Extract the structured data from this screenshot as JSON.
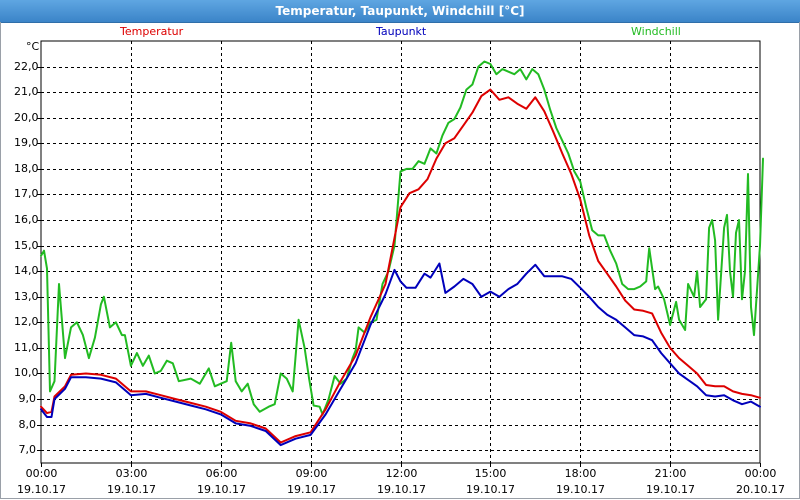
{
  "window": {
    "title": "Temperatur, Taupunkt, Windchill [°C]"
  },
  "chart_data": {
    "type": "line",
    "title": "Temperatur, Taupunkt, Windchill [°C]",
    "ylabel": "°C",
    "xlabel": "",
    "ylim": [
      6.5,
      23.0
    ],
    "xlim": [
      0,
      24
    ],
    "grid": true,
    "legend_position": "top",
    "yticks": [
      7,
      8,
      9,
      10,
      11,
      12,
      13,
      14,
      15,
      16,
      17,
      18,
      19,
      20,
      21,
      22
    ],
    "ytick_labels": [
      "7,0",
      "8,0",
      "9,0",
      "10,0",
      "11,0",
      "12,0",
      "13,0",
      "14,0",
      "15,0",
      "16,0",
      "17,0",
      "18,0",
      "19,0",
      "20,0",
      "21,0",
      "22,0"
    ],
    "xticks": [
      0,
      3,
      6,
      9,
      12,
      15,
      18,
      21,
      24
    ],
    "xtick_times": [
      "00:00",
      "03:00",
      "06:00",
      "09:00",
      "12:00",
      "15:00",
      "18:00",
      "21:00",
      "00:00"
    ],
    "xtick_dates": [
      "19.10.17",
      "19.10.17",
      "19.10.17",
      "19.10.17",
      "19.10.17",
      "19.10.17",
      "19.10.17",
      "19.10.17",
      "20.10.17"
    ],
    "series": [
      {
        "name": "Temperatur",
        "color": "#dd0000",
        "points": [
          [
            0.0,
            8.7
          ],
          [
            0.2,
            8.45
          ],
          [
            0.35,
            8.5
          ],
          [
            0.45,
            9.1
          ],
          [
            0.8,
            9.5
          ],
          [
            1.0,
            9.95
          ],
          [
            1.5,
            10.0
          ],
          [
            2.0,
            9.95
          ],
          [
            2.5,
            9.8
          ],
          [
            3.0,
            9.3
          ],
          [
            3.5,
            9.3
          ],
          [
            4.0,
            9.15
          ],
          [
            4.5,
            9.0
          ],
          [
            5.0,
            8.85
          ],
          [
            5.5,
            8.7
          ],
          [
            6.0,
            8.5
          ],
          [
            6.5,
            8.15
          ],
          [
            7.0,
            8.05
          ],
          [
            7.5,
            7.85
          ],
          [
            8.0,
            7.3
          ],
          [
            8.5,
            7.55
          ],
          [
            9.0,
            7.7
          ],
          [
            9.5,
            8.6
          ],
          [
            10.0,
            9.7
          ],
          [
            10.5,
            10.7
          ],
          [
            11.0,
            12.2
          ],
          [
            11.5,
            13.5
          ],
          [
            12.0,
            16.5
          ],
          [
            12.3,
            17.05
          ],
          [
            12.6,
            17.2
          ],
          [
            12.9,
            17.6
          ],
          [
            13.2,
            18.4
          ],
          [
            13.5,
            19.0
          ],
          [
            13.8,
            19.2
          ],
          [
            14.1,
            19.7
          ],
          [
            14.4,
            20.2
          ],
          [
            14.7,
            20.85
          ],
          [
            15.0,
            21.1
          ],
          [
            15.3,
            20.7
          ],
          [
            15.6,
            20.8
          ],
          [
            15.9,
            20.55
          ],
          [
            16.2,
            20.35
          ],
          [
            16.5,
            20.8
          ],
          [
            16.8,
            20.25
          ],
          [
            17.1,
            19.45
          ],
          [
            17.4,
            18.6
          ],
          [
            17.7,
            17.8
          ],
          [
            18.0,
            16.8
          ],
          [
            18.3,
            15.4
          ],
          [
            18.6,
            14.4
          ],
          [
            18.9,
            13.9
          ],
          [
            19.2,
            13.4
          ],
          [
            19.5,
            12.85
          ],
          [
            19.8,
            12.5
          ],
          [
            20.1,
            12.45
          ],
          [
            20.4,
            12.35
          ],
          [
            20.7,
            11.6
          ],
          [
            21.0,
            11.0
          ],
          [
            21.3,
            10.6
          ],
          [
            21.6,
            10.3
          ],
          [
            21.9,
            10.0
          ],
          [
            22.2,
            9.55
          ],
          [
            22.5,
            9.5
          ],
          [
            22.8,
            9.5
          ],
          [
            23.1,
            9.3
          ],
          [
            23.4,
            9.2
          ],
          [
            23.7,
            9.15
          ],
          [
            24.0,
            9.05
          ]
        ]
      },
      {
        "name": "Taupunkt",
        "color": "#0000bb",
        "points": [
          [
            0.0,
            8.6
          ],
          [
            0.2,
            8.3
          ],
          [
            0.35,
            8.3
          ],
          [
            0.45,
            9.0
          ],
          [
            0.8,
            9.4
          ],
          [
            1.0,
            9.85
          ],
          [
            1.5,
            9.85
          ],
          [
            2.0,
            9.8
          ],
          [
            2.5,
            9.65
          ],
          [
            3.0,
            9.15
          ],
          [
            3.5,
            9.2
          ],
          [
            4.0,
            9.05
          ],
          [
            4.5,
            8.9
          ],
          [
            5.0,
            8.75
          ],
          [
            5.5,
            8.6
          ],
          [
            6.0,
            8.4
          ],
          [
            6.5,
            8.05
          ],
          [
            7.0,
            7.95
          ],
          [
            7.5,
            7.75
          ],
          [
            8.0,
            7.2
          ],
          [
            8.5,
            7.45
          ],
          [
            9.0,
            7.6
          ],
          [
            9.5,
            8.4
          ],
          [
            10.0,
            9.4
          ],
          [
            10.5,
            10.4
          ],
          [
            11.0,
            11.9
          ],
          [
            11.5,
            13.1
          ],
          [
            11.8,
            14.05
          ],
          [
            12.0,
            13.6
          ],
          [
            12.2,
            13.35
          ],
          [
            12.5,
            13.35
          ],
          [
            12.8,
            13.9
          ],
          [
            13.0,
            13.75
          ],
          [
            13.3,
            14.3
          ],
          [
            13.5,
            13.15
          ],
          [
            13.8,
            13.4
          ],
          [
            14.1,
            13.7
          ],
          [
            14.4,
            13.5
          ],
          [
            14.7,
            13.0
          ],
          [
            15.0,
            13.2
          ],
          [
            15.3,
            13.0
          ],
          [
            15.6,
            13.3
          ],
          [
            15.9,
            13.5
          ],
          [
            16.2,
            13.9
          ],
          [
            16.5,
            14.25
          ],
          [
            16.8,
            13.8
          ],
          [
            17.1,
            13.8
          ],
          [
            17.4,
            13.8
          ],
          [
            17.7,
            13.7
          ],
          [
            18.0,
            13.35
          ],
          [
            18.3,
            13.0
          ],
          [
            18.6,
            12.6
          ],
          [
            18.9,
            12.3
          ],
          [
            19.2,
            12.1
          ],
          [
            19.5,
            11.8
          ],
          [
            19.8,
            11.5
          ],
          [
            20.1,
            11.45
          ],
          [
            20.4,
            11.3
          ],
          [
            20.7,
            10.8
          ],
          [
            21.0,
            10.4
          ],
          [
            21.3,
            10.0
          ],
          [
            21.6,
            9.75
          ],
          [
            21.9,
            9.5
          ],
          [
            22.2,
            9.15
          ],
          [
            22.5,
            9.1
          ],
          [
            22.8,
            9.15
          ],
          [
            23.1,
            8.95
          ],
          [
            23.4,
            8.8
          ],
          [
            23.7,
            8.9
          ],
          [
            24.0,
            8.7
          ]
        ]
      },
      {
        "name": "Windchill",
        "color": "#22bb22",
        "points": [
          [
            0.0,
            14.6
          ],
          [
            0.1,
            14.8
          ],
          [
            0.2,
            14.1
          ],
          [
            0.3,
            9.3
          ],
          [
            0.45,
            9.7
          ],
          [
            0.6,
            13.5
          ],
          [
            0.8,
            10.6
          ],
          [
            1.0,
            11.8
          ],
          [
            1.2,
            12.0
          ],
          [
            1.4,
            11.5
          ],
          [
            1.6,
            10.6
          ],
          [
            1.8,
            11.4
          ],
          [
            2.0,
            12.7
          ],
          [
            2.1,
            13.0
          ],
          [
            2.3,
            11.8
          ],
          [
            2.5,
            12.0
          ],
          [
            2.7,
            11.5
          ],
          [
            2.8,
            11.5
          ],
          [
            3.0,
            10.3
          ],
          [
            3.2,
            10.8
          ],
          [
            3.4,
            10.3
          ],
          [
            3.6,
            10.7
          ],
          [
            3.8,
            10.0
          ],
          [
            4.0,
            10.1
          ],
          [
            4.2,
            10.5
          ],
          [
            4.4,
            10.4
          ],
          [
            4.6,
            9.7
          ],
          [
            5.0,
            9.8
          ],
          [
            5.3,
            9.6
          ],
          [
            5.6,
            10.2
          ],
          [
            5.8,
            9.5
          ],
          [
            6.0,
            9.6
          ],
          [
            6.2,
            9.7
          ],
          [
            6.35,
            11.2
          ],
          [
            6.5,
            9.7
          ],
          [
            6.7,
            9.3
          ],
          [
            6.9,
            9.6
          ],
          [
            7.1,
            8.8
          ],
          [
            7.3,
            8.5
          ],
          [
            7.6,
            8.7
          ],
          [
            7.8,
            8.8
          ],
          [
            8.0,
            10.0
          ],
          [
            8.2,
            9.8
          ],
          [
            8.4,
            9.3
          ],
          [
            8.6,
            12.1
          ],
          [
            8.8,
            11.0
          ],
          [
            8.95,
            9.8
          ],
          [
            9.1,
            8.75
          ],
          [
            9.3,
            8.7
          ],
          [
            9.4,
            8.4
          ],
          [
            9.6,
            9.0
          ],
          [
            9.8,
            9.9
          ],
          [
            10.0,
            9.6
          ],
          [
            10.2,
            9.8
          ],
          [
            10.4,
            10.6
          ],
          [
            10.5,
            10.9
          ],
          [
            10.6,
            11.8
          ],
          [
            10.8,
            11.6
          ],
          [
            11.0,
            12.0
          ],
          [
            11.2,
            12.1
          ],
          [
            11.4,
            13.5
          ],
          [
            11.6,
            14.0
          ],
          [
            11.8,
            15.0
          ],
          [
            12.0,
            17.9
          ],
          [
            12.2,
            18.0
          ],
          [
            12.4,
            18.0
          ],
          [
            12.6,
            18.3
          ],
          [
            12.8,
            18.2
          ],
          [
            13.0,
            18.8
          ],
          [
            13.2,
            18.6
          ],
          [
            13.4,
            19.3
          ],
          [
            13.6,
            19.8
          ],
          [
            13.8,
            19.95
          ],
          [
            14.0,
            20.4
          ],
          [
            14.2,
            21.1
          ],
          [
            14.4,
            21.3
          ],
          [
            14.6,
            22.0
          ],
          [
            14.8,
            22.2
          ],
          [
            15.0,
            22.1
          ],
          [
            15.2,
            21.7
          ],
          [
            15.4,
            21.9
          ],
          [
            15.6,
            21.8
          ],
          [
            15.8,
            21.7
          ],
          [
            16.0,
            21.9
          ],
          [
            16.2,
            21.5
          ],
          [
            16.4,
            21.9
          ],
          [
            16.6,
            21.7
          ],
          [
            16.8,
            21.1
          ],
          [
            17.0,
            20.3
          ],
          [
            17.2,
            19.6
          ],
          [
            17.4,
            19.1
          ],
          [
            17.6,
            18.6
          ],
          [
            17.8,
            17.9
          ],
          [
            18.0,
            17.5
          ],
          [
            18.2,
            16.5
          ],
          [
            18.4,
            15.6
          ],
          [
            18.6,
            15.4
          ],
          [
            18.8,
            15.4
          ],
          [
            19.0,
            14.8
          ],
          [
            19.2,
            14.3
          ],
          [
            19.4,
            13.5
          ],
          [
            19.6,
            13.3
          ],
          [
            19.8,
            13.3
          ],
          [
            20.0,
            13.4
          ],
          [
            20.2,
            13.6
          ],
          [
            20.3,
            14.9
          ],
          [
            20.5,
            13.3
          ],
          [
            20.6,
            13.4
          ],
          [
            20.8,
            12.9
          ],
          [
            21.0,
            11.9
          ],
          [
            21.2,
            12.8
          ],
          [
            21.3,
            12.1
          ],
          [
            21.5,
            11.7
          ],
          [
            21.6,
            13.5
          ],
          [
            21.8,
            13.0
          ],
          [
            21.9,
            14.0
          ],
          [
            22.0,
            12.6
          ],
          [
            22.2,
            12.9
          ],
          [
            22.3,
            15.7
          ],
          [
            22.4,
            16.0
          ],
          [
            22.5,
            15.2
          ],
          [
            22.6,
            12.1
          ],
          [
            22.8,
            15.7
          ],
          [
            22.9,
            16.2
          ],
          [
            23.0,
            14.0
          ],
          [
            23.1,
            13.0
          ],
          [
            23.2,
            15.5
          ],
          [
            23.3,
            16.0
          ],
          [
            23.4,
            12.9
          ],
          [
            23.5,
            14.0
          ],
          [
            23.6,
            17.8
          ],
          [
            23.7,
            12.6
          ],
          [
            23.8,
            11.5
          ],
          [
            24.0,
            15.0
          ],
          [
            24.1,
            18.4
          ]
        ]
      }
    ]
  }
}
